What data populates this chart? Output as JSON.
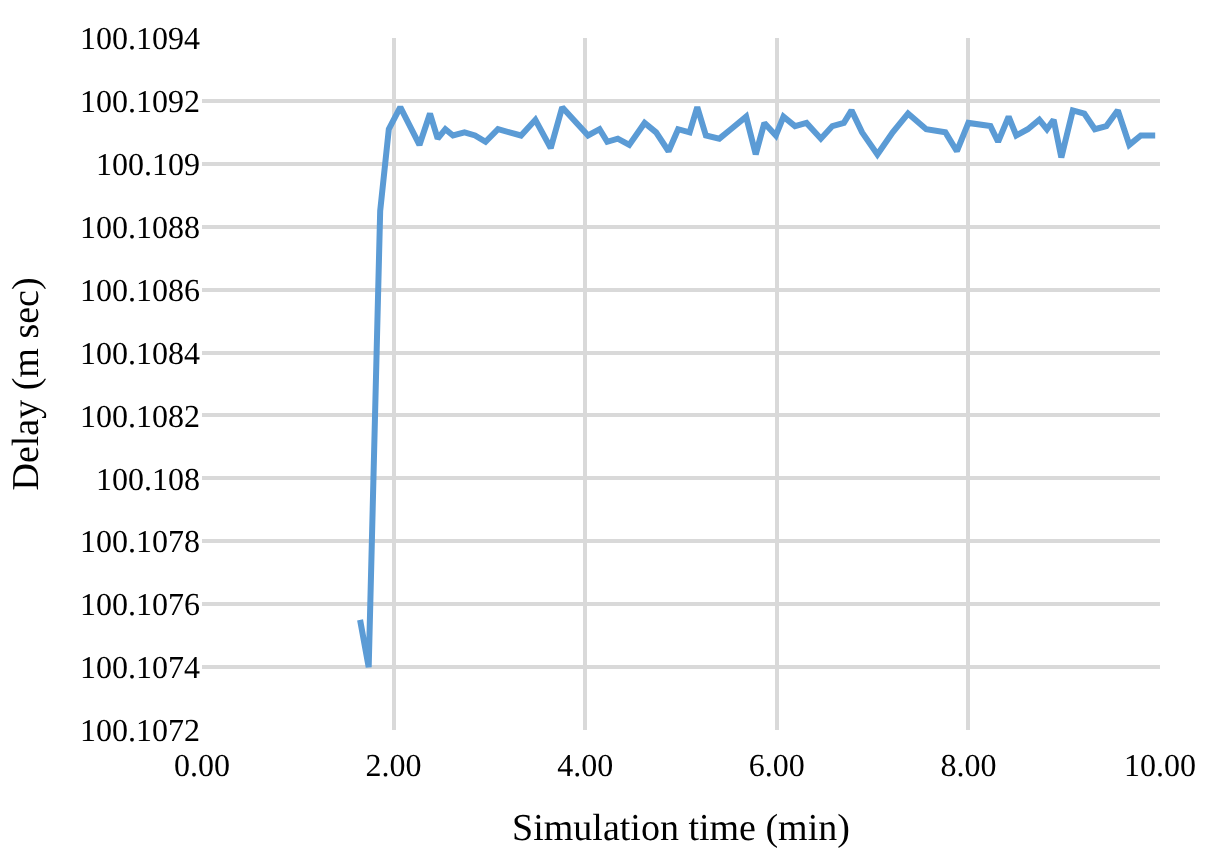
{
  "chart_data": {
    "type": "line",
    "xlabel": "Simulation time (min)",
    "ylabel": "Delay (m sec)",
    "xlim": [
      0,
      10
    ],
    "xticks": [
      {
        "value": 0,
        "label": "0.00"
      },
      {
        "value": 2,
        "label": "2.00"
      },
      {
        "value": 4,
        "label": "4.00"
      },
      {
        "value": 6,
        "label": "6.00"
      },
      {
        "value": 8,
        "label": "8.00"
      },
      {
        "value": 10,
        "label": "10.00"
      }
    ],
    "ylim": [
      100.1072,
      100.1094
    ],
    "yticks": [
      100.1072,
      100.1074,
      100.1076,
      100.1078,
      100.108,
      100.1082,
      100.1084,
      100.1086,
      100.1088,
      100.109,
      100.1092,
      100.1094
    ],
    "grid": true,
    "marker": "none",
    "line_style": "solid",
    "series": [
      {
        "color": "#5b9bd5",
        "x": [
          1.65,
          1.74,
          1.86,
          1.95,
          2.07,
          2.27,
          2.38,
          2.46,
          2.54,
          2.62,
          2.74,
          2.85,
          2.96,
          3.09,
          3.21,
          3.33,
          3.48,
          3.64,
          3.76,
          3.91,
          4.03,
          4.15,
          4.23,
          4.34,
          4.46,
          4.62,
          4.74,
          4.87,
          4.97,
          5.09,
          5.17,
          5.26,
          5.4,
          5.52,
          5.68,
          5.78,
          5.87,
          5.99,
          6.07,
          6.19,
          6.31,
          6.46,
          6.58,
          6.7,
          6.78,
          6.89,
          7.05,
          7.21,
          7.37,
          7.56,
          7.76,
          7.88,
          8.0,
          8.23,
          8.31,
          8.42,
          8.5,
          8.62,
          8.74,
          8.82,
          8.89,
          8.97,
          9.09,
          9.21,
          9.32,
          9.44,
          9.56,
          9.68,
          9.8,
          9.95
        ],
        "values": [
          100.10755,
          100.1074,
          100.10885,
          100.10911,
          100.10918,
          100.10906,
          100.10916,
          100.10908,
          100.10911,
          100.10909,
          100.1091,
          100.10909,
          100.10907,
          100.10911,
          100.1091,
          100.10909,
          100.10914,
          100.10905,
          100.10918,
          100.10913,
          100.10909,
          100.10911,
          100.10907,
          100.10908,
          100.10906,
          100.10913,
          100.1091,
          100.10904,
          100.10911,
          100.1091,
          100.10918,
          100.10909,
          100.10908,
          100.10911,
          100.10915,
          100.10903,
          100.10913,
          100.10909,
          100.10915,
          100.10912,
          100.10913,
          100.10908,
          100.10912,
          100.10913,
          100.10917,
          100.1091,
          100.10903,
          100.1091,
          100.10916,
          100.10911,
          100.1091,
          100.10904,
          100.10913,
          100.10912,
          100.10907,
          100.10915,
          100.10909,
          100.10911,
          100.10914,
          100.10911,
          100.10914,
          100.10902,
          100.10917,
          100.10916,
          100.10911,
          100.10912,
          100.10917,
          100.10906,
          100.10909,
          100.10909
        ]
      }
    ]
  }
}
